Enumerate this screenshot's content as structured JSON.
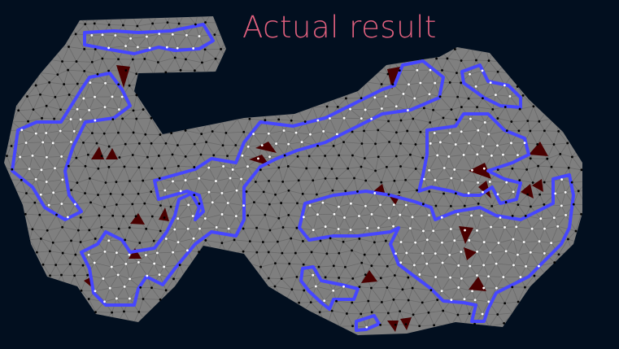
{
  "title": "Actual result",
  "colors": {
    "background": "#020f1f",
    "mesh": "#7f7f7f",
    "mesh_edge": "#6a6a6a",
    "boundary": "#4646ff",
    "inside_vertex": "#ffffff",
    "outside_vertex": "#000000",
    "bad_triangle": "#4a0000",
    "title": "#e0607e"
  }
}
